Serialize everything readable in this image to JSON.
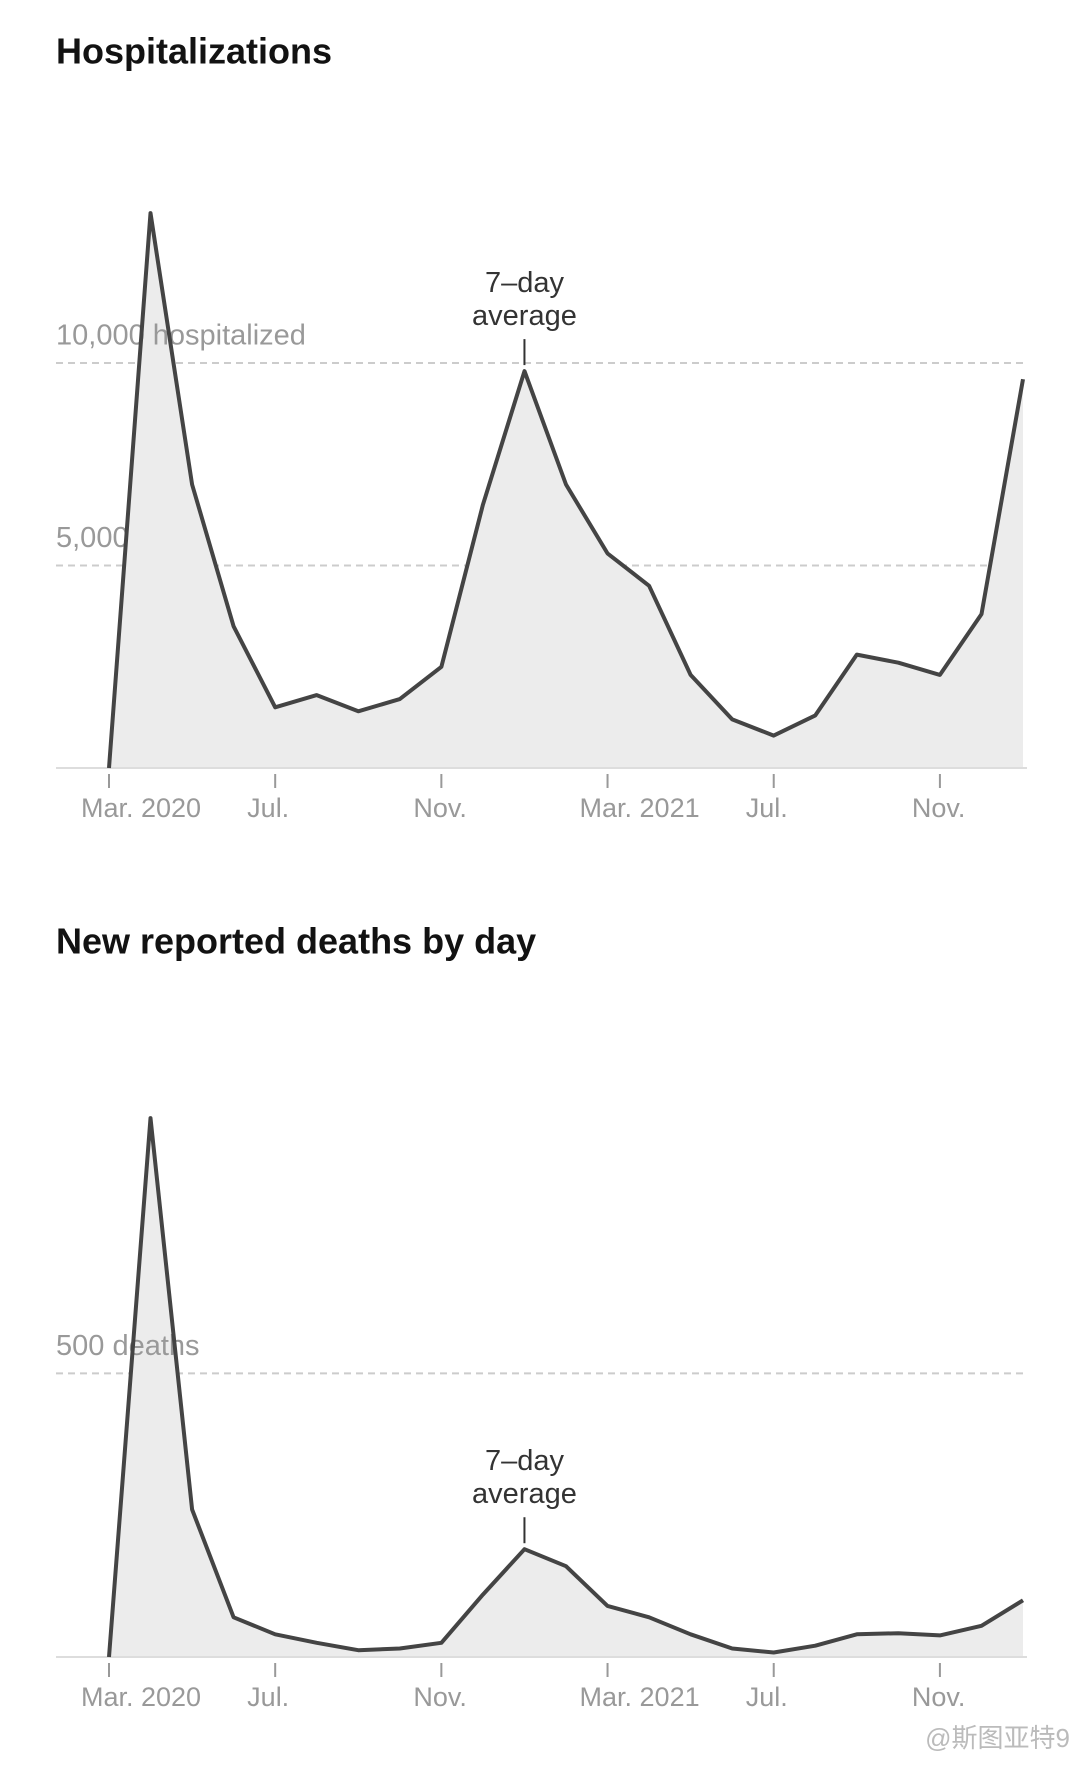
{
  "chart_data": [
    {
      "type": "area",
      "title": "Hospitalizations",
      "annotation": "7–day average",
      "annotation_at": "2021-01",
      "x": [
        "2020-03",
        "2020-04",
        "2020-05",
        "2020-06",
        "2020-07",
        "2020-08",
        "2020-09",
        "2020-10",
        "2020-11",
        "2020-12",
        "2021-01",
        "2021-02",
        "2021-03",
        "2021-04",
        "2021-05",
        "2021-06",
        "2021-07",
        "2021-08",
        "2021-09",
        "2021-10",
        "2021-11",
        "2021-12",
        "2022-01"
      ],
      "values": [
        0,
        13700,
        7000,
        3500,
        1500,
        1800,
        1400,
        1700,
        2500,
        6500,
        9800,
        7000,
        5300,
        4500,
        2300,
        1200,
        800,
        1300,
        2800,
        2600,
        2300,
        3800,
        9600
      ],
      "color": "#444444",
      "fill": "#ececec",
      "xlim": [
        "2020-03",
        "2022-01"
      ],
      "xticks": [
        {
          "value": "2020-03",
          "label": "Mar. 2020"
        },
        {
          "value": "2020-07",
          "label": "Jul."
        },
        {
          "value": "2020-11",
          "label": "Nov."
        },
        {
          "value": "2021-03",
          "label": "Mar. 2021"
        },
        {
          "value": "2021-07",
          "label": "Jul."
        },
        {
          "value": "2021-11",
          "label": "Nov."
        }
      ],
      "ylim": [
        0,
        16000
      ],
      "yticks": [
        {
          "value": 10000,
          "label": "10,000 hospitalized"
        },
        {
          "value": 5000,
          "label": "5,000"
        }
      ],
      "grid": true
    },
    {
      "type": "area",
      "title": "New reported deaths by day",
      "annotation": "7–day average",
      "annotation_at": "2021-01",
      "x": [
        "2020-03",
        "2020-04",
        "2020-05",
        "2020-06",
        "2020-07",
        "2020-08",
        "2020-09",
        "2020-10",
        "2020-11",
        "2020-12",
        "2021-01",
        "2021-02",
        "2021-03",
        "2021-04",
        "2021-05",
        "2021-06",
        "2021-07",
        "2021-08",
        "2021-09",
        "2021-10",
        "2021-11",
        "2021-12",
        "2022-01"
      ],
      "values": [
        0,
        950,
        260,
        70,
        40,
        25,
        12,
        15,
        25,
        110,
        190,
        160,
        90,
        70,
        40,
        15,
        8,
        20,
        40,
        42,
        38,
        55,
        100
      ],
      "color": "#444444",
      "fill": "#ececec",
      "xlim": [
        "2020-03",
        "2022-01"
      ],
      "xticks": [
        {
          "value": "2020-03",
          "label": "Mar. 2020"
        },
        {
          "value": "2020-07",
          "label": "Jul."
        },
        {
          "value": "2020-11",
          "label": "Nov."
        },
        {
          "value": "2021-03",
          "label": "Mar. 2021"
        },
        {
          "value": "2021-07",
          "label": "Jul."
        },
        {
          "value": "2021-11",
          "label": "Nov."
        }
      ],
      "ylim": [
        0,
        1100
      ],
      "yticks": [
        {
          "value": 500,
          "label": "500 deaths"
        }
      ],
      "grid": true
    }
  ],
  "watermark": "@斯图亚特9"
}
